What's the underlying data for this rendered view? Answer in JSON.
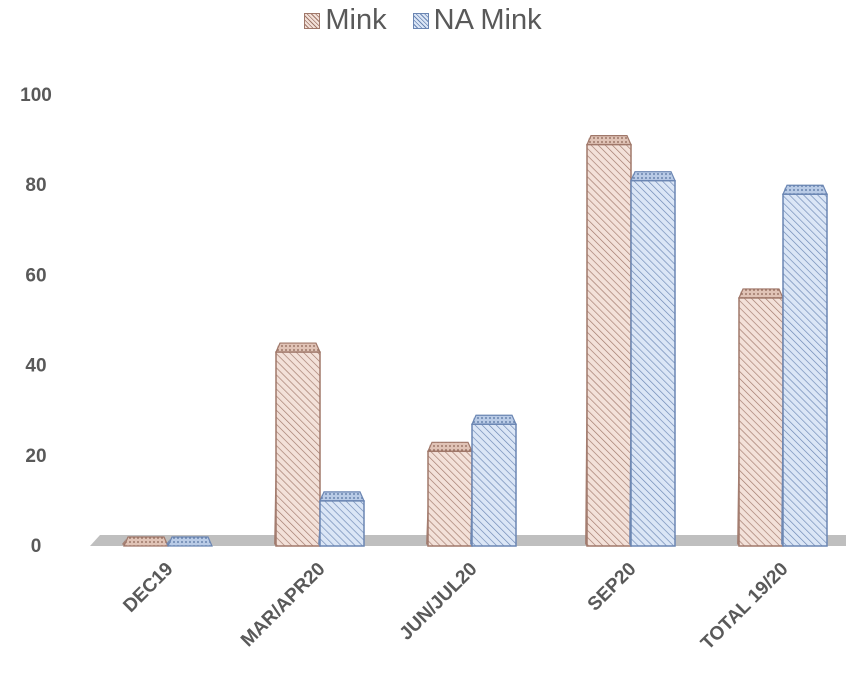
{
  "chart_data": {
    "type": "bar",
    "title": "",
    "xlabel": "",
    "ylabel": "",
    "categories": [
      "DEC19",
      "MAR/APR20",
      "JUN/JUL20",
      "SEP20",
      "TOTAL 19/20"
    ],
    "series": [
      {
        "name": "Mink",
        "values": [
          0,
          43,
          21,
          89,
          55
        ],
        "color": "#a0786a",
        "fill": "#f3e1d9"
      },
      {
        "name": "NA Mink",
        "values": [
          0,
          10,
          27,
          81,
          78
        ],
        "color": "#6b86b3",
        "fill": "#dbe6f6"
      }
    ],
    "ylim": [
      0,
      100
    ],
    "yticks": [
      0,
      20,
      40,
      60,
      80,
      100
    ],
    "grid": false,
    "legend": "top-center",
    "floor_color": "#bfbfbf"
  }
}
